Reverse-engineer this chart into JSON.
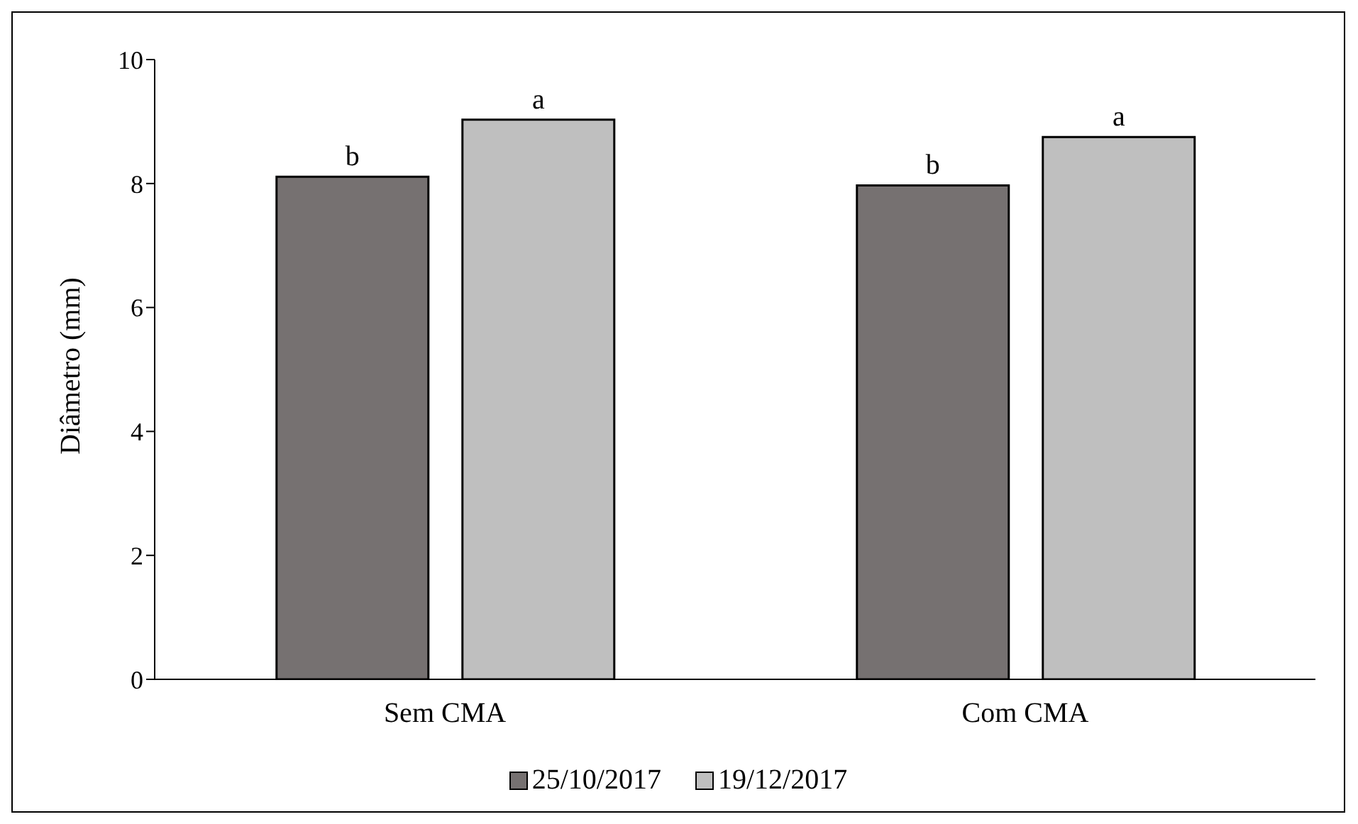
{
  "chart_data": {
    "type": "bar",
    "ylabel": "Diâmetro (mm)",
    "categories": [
      "Sem CMA",
      "Com CMA"
    ],
    "series": [
      {
        "name": "25/10/2017",
        "color": "#767171",
        "values": [
          8.11,
          7.97
        ],
        "value_labels": [
          "b",
          "b"
        ]
      },
      {
        "name": "19/12/2017",
        "color": "#bfbfbf",
        "values": [
          9.03,
          8.75
        ],
        "value_labels": [
          "a",
          "a"
        ]
      }
    ],
    "ylim": [
      0,
      10
    ],
    "yticks": [
      0,
      2,
      4,
      6,
      8,
      10
    ],
    "legend": "bottom"
  }
}
